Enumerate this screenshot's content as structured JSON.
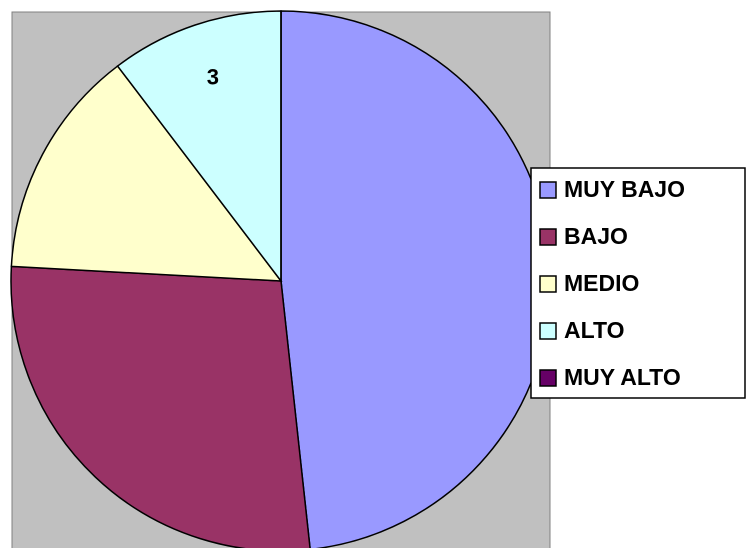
{
  "chart_data": {
    "type": "pie",
    "categories": [
      "MUY BAJO",
      "BAJO",
      "MEDIO",
      "ALTO",
      "MUY ALTO"
    ],
    "values": [
      14,
      8,
      4,
      3,
      0
    ],
    "value_labels": [
      null,
      null,
      null,
      "3",
      null
    ],
    "colors": [
      "#9999ff",
      "#993366",
      "#ffffcc",
      "#ccffff",
      "#660066"
    ],
    "legend": "right"
  }
}
